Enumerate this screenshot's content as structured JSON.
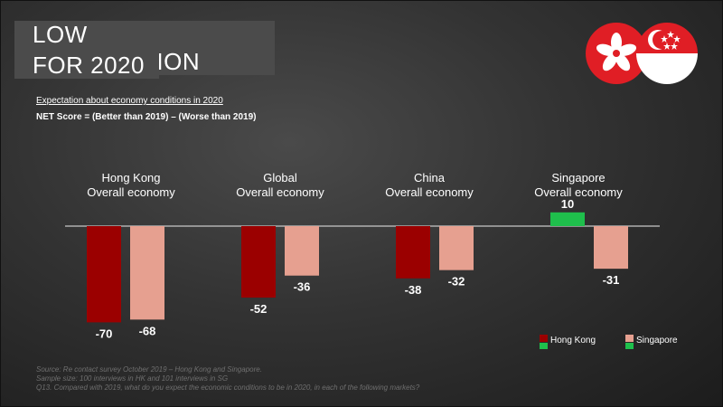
{
  "slide": {
    "title_line1": "LOW EXPECTATION",
    "title_line2": "FOR 2020",
    "subtitle": "Expectation about economy conditions in 2020",
    "net_score": "NET Score = (Better than 2019) – (Worse than 2019)",
    "footnotes": [
      "Source: Re contact survey October 2019 – Hong Kong and Singapore.",
      "Sample size: 100 interviews in HK and 101 interviews in SG",
      "Q13. Compared with 2019, what do you expect the economic conditions to be in 2020, in each of the following markets?"
    ],
    "flags": [
      {
        "name": "hong-kong-flag-icon",
        "color": "#e01e25"
      },
      {
        "name": "singapore-flag-icon",
        "color": "#e01e25"
      }
    ]
  },
  "chart_data": {
    "type": "bar",
    "categories": [
      [
        "Hong Kong",
        "Overall economy"
      ],
      [
        "Global",
        "Overall economy"
      ],
      [
        "China",
        "Overall economy"
      ],
      [
        "Singapore",
        "Overall economy"
      ]
    ],
    "series": [
      {
        "name": "Hong Kong",
        "values": [
          -70,
          -52,
          -38,
          10
        ],
        "color": "#9b0000",
        "positive_color": "#1fbf4c"
      },
      {
        "name": "Singapore",
        "values": [
          -68,
          -36,
          -32,
          -31
        ],
        "color": "#e6a090",
        "positive_color": "#1fbf4c"
      }
    ],
    "ylim": [
      -70,
      10
    ],
    "legend_position": "bottom-right"
  }
}
